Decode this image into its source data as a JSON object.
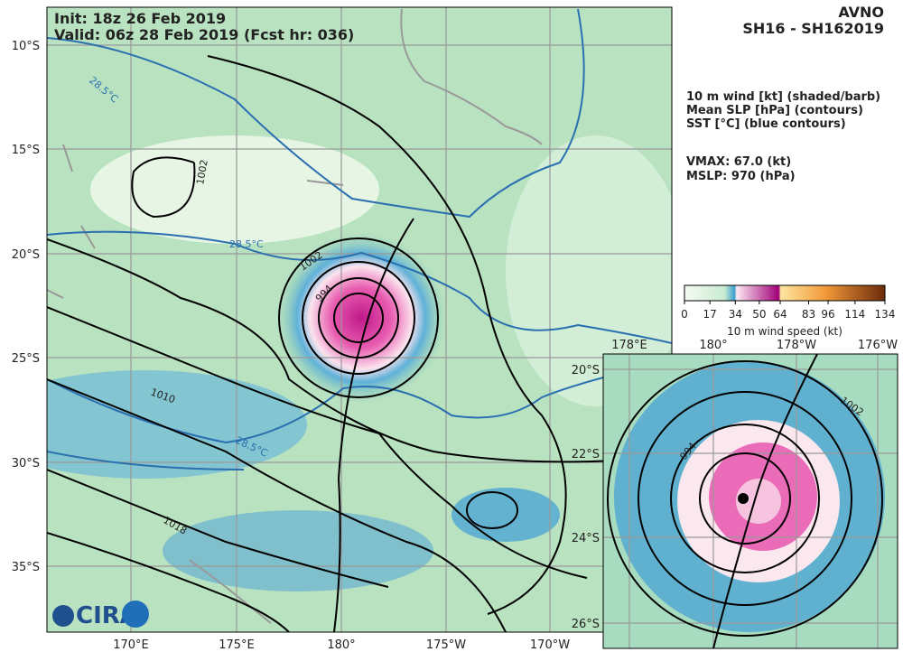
{
  "header": {
    "init": "Init:   18z 26 Feb 2019",
    "valid": "Valid: 06z 28 Feb 2019 (Fcst hr: 036)",
    "model": "AVNO",
    "storm": "SH16 - SH162019"
  },
  "info": {
    "fields": [
      "10 m wind [kt] (shaded/barb)",
      "Mean SLP [hPa] (contours)",
      "SST [°C] (blue contours)"
    ],
    "vmax": "VMAX:  67.0 (kt)",
    "mslp": "MSLP:  970 (hPa)"
  },
  "colorbar": {
    "label": "10 m wind speed (kt)",
    "lim": [
      0,
      134
    ],
    "ticks": [
      0,
      17,
      34,
      50,
      64,
      83,
      96,
      114,
      134
    ]
  },
  "main_map": {
    "lat_labels": [
      "10°S",
      "15°S",
      "20°S",
      "25°S",
      "30°S",
      "35°S"
    ],
    "lon_labels": [
      "170°E",
      "175°E",
      "180°",
      "175°W",
      "170°W"
    ],
    "contour_labels": [
      "1002",
      "1002",
      "994",
      "1010",
      "1018",
      "28.5°C",
      "28.5°C",
      "28.5°C"
    ]
  },
  "inset_map": {
    "lon_labels": [
      "178°E",
      "180°",
      "178°W",
      "176°W"
    ],
    "lat_labels": [
      "20°S",
      "22°S",
      "24°S",
      "26°S"
    ],
    "contour_labels": [
      "1002",
      "994"
    ]
  },
  "logo": "CIRA"
}
